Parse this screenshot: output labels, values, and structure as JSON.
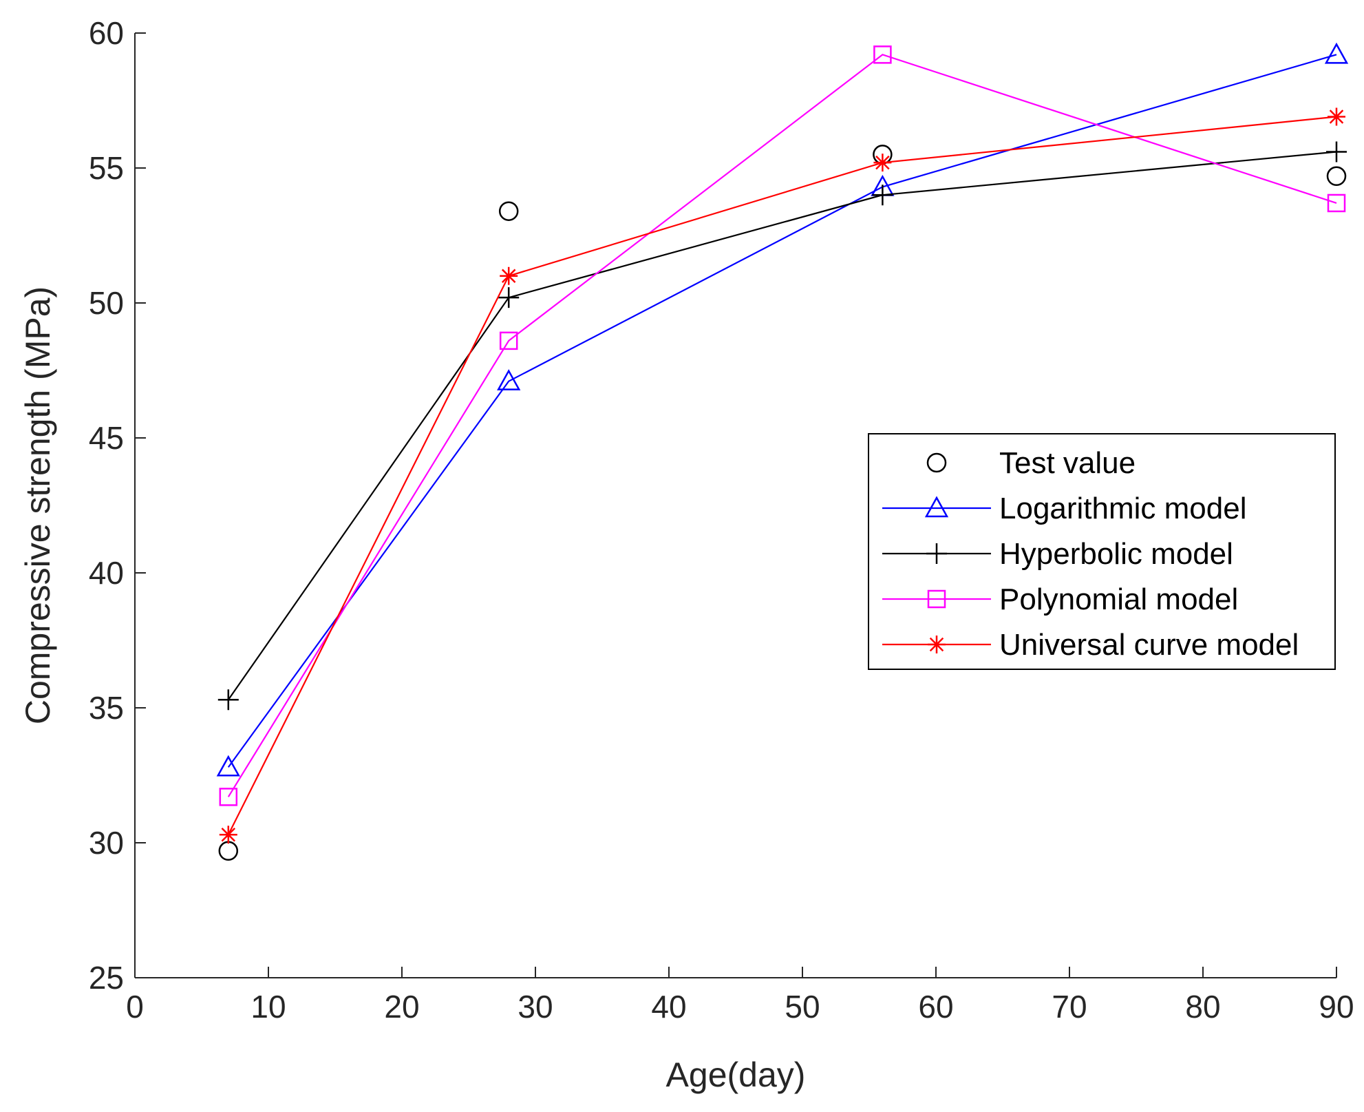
{
  "chart_data": {
    "type": "line",
    "title": "",
    "xlabel": "Age(day)",
    "ylabel": "Compressive strength (MPa)",
    "xlim": [
      0,
      90
    ],
    "ylim": [
      25,
      60
    ],
    "xticks": [
      "0",
      "10",
      "20",
      "30",
      "40",
      "50",
      "60",
      "70",
      "80",
      "90"
    ],
    "yticks": [
      "25",
      "30",
      "35",
      "40",
      "45",
      "50",
      "55",
      "60"
    ],
    "grid": false,
    "legend_position": "right-middle",
    "x": [
      7,
      28,
      56,
      90
    ],
    "series": [
      {
        "name": "Test value",
        "color": "#000000",
        "marker": "circle",
        "line": false,
        "values": [
          29.7,
          53.4,
          55.5,
          54.7
        ]
      },
      {
        "name": "Logarithmic model",
        "color": "#0000ff",
        "marker": "triangle",
        "line": true,
        "values": [
          32.8,
          47.1,
          54.3,
          59.2
        ]
      },
      {
        "name": "Hyperbolic model",
        "color": "#000000",
        "marker": "plus",
        "line": true,
        "values": [
          35.3,
          50.2,
          54.0,
          55.6
        ]
      },
      {
        "name": "Polynomial model",
        "color": "#ff00ff",
        "marker": "square",
        "line": true,
        "values": [
          31.7,
          48.6,
          59.2,
          53.7
        ]
      },
      {
        "name": "Universal curve model",
        "color": "#ff0000",
        "marker": "asterisk",
        "line": true,
        "values": [
          30.3,
          51.0,
          55.2,
          56.9
        ]
      }
    ]
  }
}
